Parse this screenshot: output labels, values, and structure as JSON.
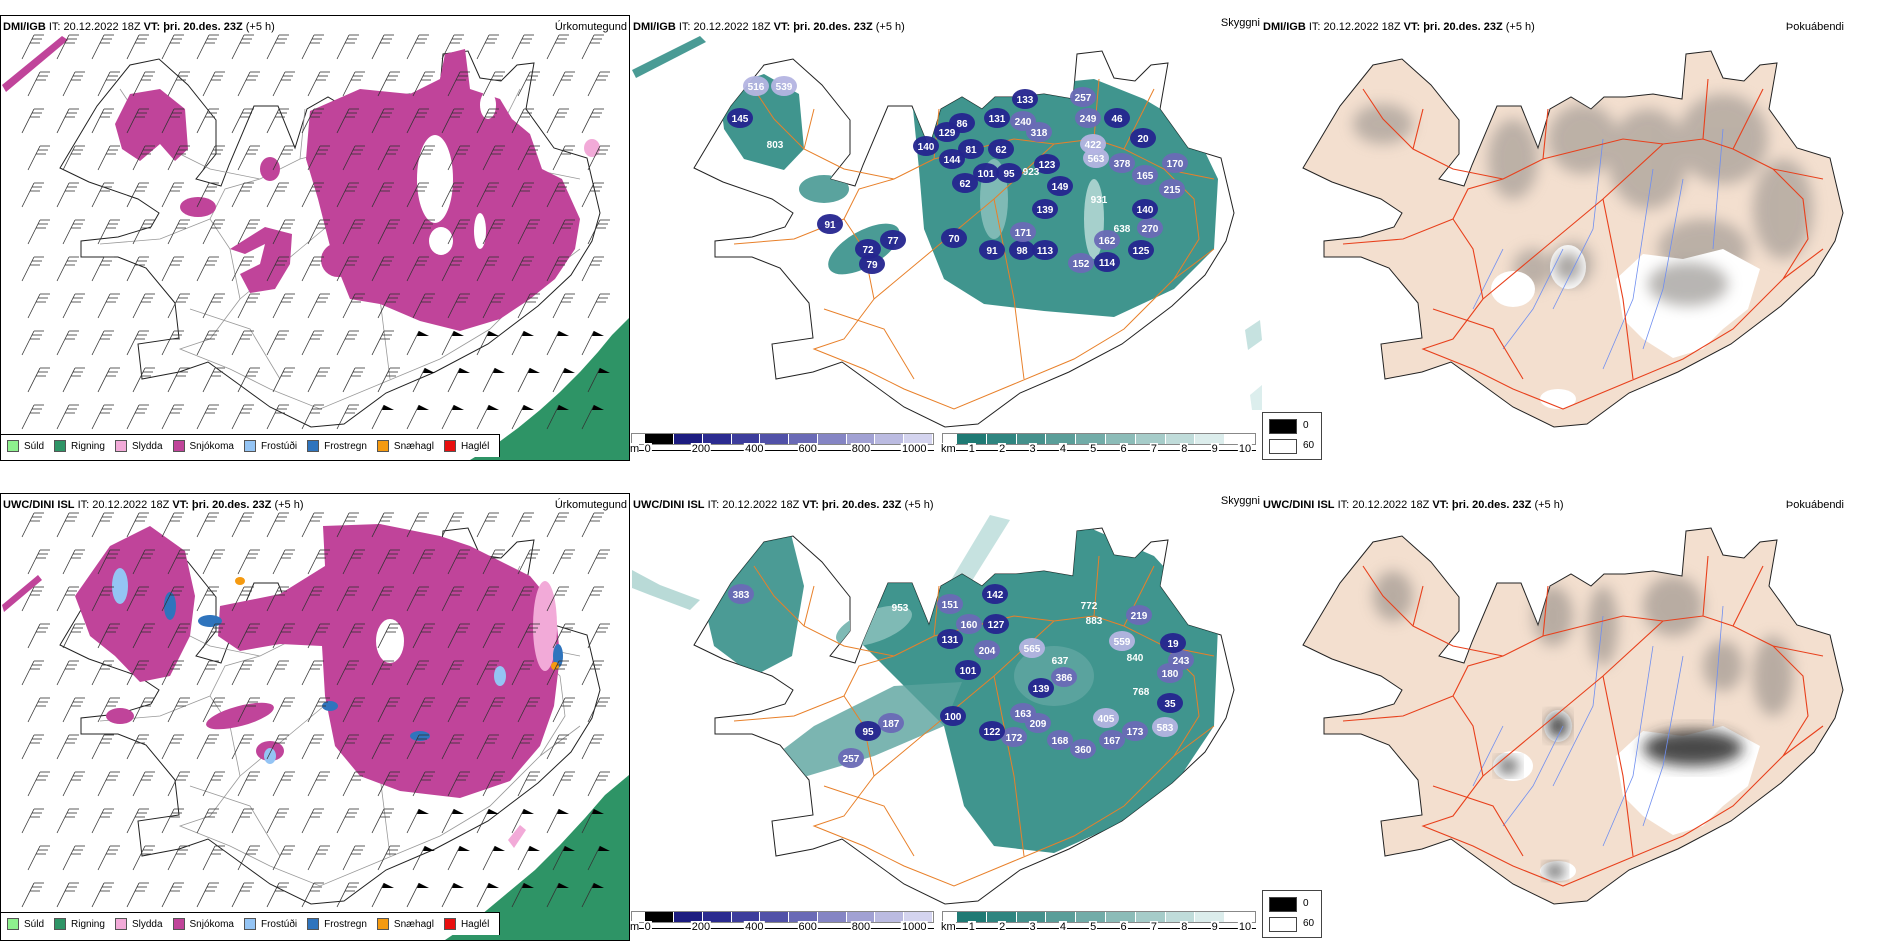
{
  "panels": {
    "top_left": {
      "model": "DMI/IGB",
      "it": "IT: 20.12.2022 18Z",
      "vt": "VT: þri. 20.des. 23Z",
      "offset": "(+5 h)",
      "title": "Úrkomutegund"
    },
    "top_middle": {
      "model": "DMI/IGB",
      "it": "IT: 20.12.2022 18Z",
      "vt": "VT: þri. 20.des. 23Z",
      "offset": "(+5 h)",
      "title": "Skyggni"
    },
    "top_right": {
      "model": "DMI/IGB",
      "it": "IT: 20.12.2022 18Z",
      "vt": "VT: þri. 20.des. 23Z",
      "offset": "(+5 h)",
      "title": "Þokuábendi"
    },
    "bottom_left": {
      "model": "UWC/DINI ISL",
      "it": "IT: 20.12.2022 18Z",
      "vt": "VT: þri. 20.des. 23Z",
      "offset": "(+5 h)",
      "title": "Úrkomutegund"
    },
    "bottom_middle": {
      "model": "UWC/DINI ISL",
      "it": "IT: 20.12.2022 18Z",
      "vt": "VT: þri. 20.des. 23Z",
      "offset": "(+5 h)",
      "title": "Skyggni"
    },
    "bottom_right": {
      "model": "UWC/DINI ISL",
      "it": "IT: 20.12.2022 18Z",
      "vt": "VT: þri. 20.des. 23Z",
      "offset": "(+5 h)",
      "title": "Þokuábendi"
    }
  },
  "precip_legend": [
    {
      "label": "Súld",
      "color": "#8ef08e"
    },
    {
      "label": "Rigning",
      "color": "#2e9466"
    },
    {
      "label": "Slydda",
      "color": "#f2aad8"
    },
    {
      "label": "Snjókoma",
      "color": "#c0449a"
    },
    {
      "label": "Frostúði",
      "color": "#94c4f4"
    },
    {
      "label": "Frostregn",
      "color": "#2f74bd"
    },
    {
      "label": "Snæhagl",
      "color": "#f59a10"
    },
    {
      "label": "Haglél",
      "color": "#e81010"
    }
  ],
  "ceiling_colorbar": {
    "unit": "m",
    "ticks": [
      "0",
      "200",
      "400",
      "600",
      "800",
      "1000"
    ],
    "colors": [
      "#000000",
      "#1c1c80",
      "#2b2b90",
      "#3d3d9c",
      "#5151a8",
      "#6a6ab6",
      "#8585c4",
      "#a1a1d3",
      "#bbbbe1",
      "#d4d4ef"
    ]
  },
  "visibility_colorbar": {
    "unit": "km",
    "ticks": [
      "1",
      "2",
      "3",
      "4",
      "5",
      "6",
      "7",
      "8",
      "9",
      "10"
    ],
    "colors": [
      "#1f7a74",
      "#2f8580",
      "#45918c",
      "#5a9e99",
      "#72aca8",
      "#8cbcb8",
      "#a6ccc9",
      "#c0dcda",
      "#dcedec",
      "#ffffff"
    ]
  },
  "fog_legend": [
    {
      "label": "0",
      "color": "#000000"
    },
    {
      "label": "60",
      "color": "#ffffff"
    }
  ],
  "map_colors": {
    "snow": "#c0449a",
    "rain": "#2e9466",
    "sleet": "#f2aad8",
    "frz_drizzle": "#94c4f4",
    "frz_rain": "#2f74bd",
    "snow_pellets": "#f59a10",
    "teal": "#2b8a82",
    "land": "#f3dfcf",
    "road_orange": "#e8802a",
    "road_red": "#e8401c",
    "river": "#6f8ef0"
  },
  "top_middle_labels": [
    "516",
    "539",
    "145",
    "803",
    "91",
    "72",
    "79",
    "77",
    "133",
    "257",
    "86",
    "131",
    "240",
    "249",
    "46",
    "129",
    "318",
    "140",
    "144",
    "81",
    "62",
    "422",
    "563",
    "20",
    "880",
    "123",
    "378",
    "101",
    "95",
    "923",
    "165",
    "170",
    "62",
    "149",
    "215",
    "931",
    "139",
    "140",
    "171",
    "638",
    "270",
    "162",
    "70",
    "91",
    "98",
    "113",
    "152",
    "114",
    "125"
  ],
  "bottom_middle_labels": [
    "383",
    "953",
    "151",
    "142",
    "772",
    "883",
    "219",
    "160",
    "127",
    "131",
    "559",
    "565",
    "204",
    "637",
    "840",
    "19",
    "243",
    "101",
    "386",
    "180",
    "139",
    "768",
    "35",
    "163",
    "100",
    "405",
    "95",
    "187",
    "122",
    "172",
    "209",
    "173",
    "583",
    "168",
    "360",
    "167",
    "257"
  ]
}
